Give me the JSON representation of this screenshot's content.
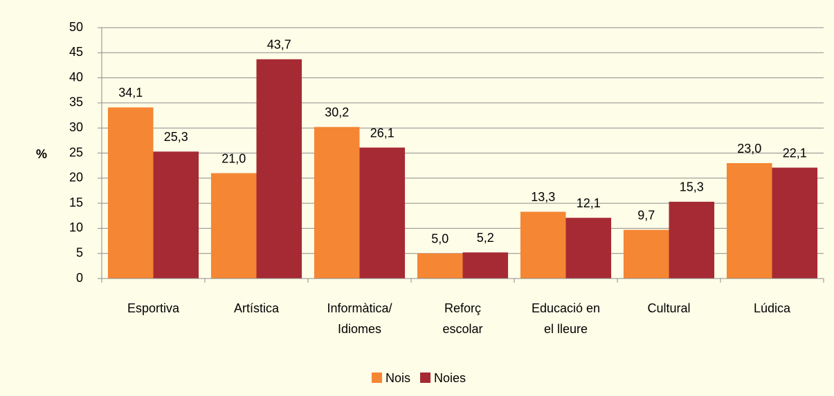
{
  "chart_data": {
    "type": "bar",
    "y_label": "%",
    "categories": [
      [
        "Esportiva"
      ],
      [
        "Artística"
      ],
      [
        "Informàtica/",
        "Idiomes"
      ],
      [
        "Reforç",
        "escolar"
      ],
      [
        "Educació en",
        "el lleure"
      ],
      [
        "Cultural"
      ],
      [
        "Lúdica"
      ]
    ],
    "series": [
      {
        "name": "Nois",
        "color": "#f58634",
        "values": [
          34.1,
          21.0,
          30.2,
          5.0,
          13.3,
          9.7,
          23.0
        ],
        "value_labels": [
          "34,1",
          "21,0",
          "30,2",
          "5,0",
          "13,3",
          "9,7",
          "23,0"
        ]
      },
      {
        "name": "Noies",
        "color": "#a62a34",
        "values": [
          25.3,
          43.7,
          26.1,
          5.2,
          12.1,
          15.3,
          22.1
        ],
        "value_labels": [
          "25,3",
          "43,7",
          "26,1",
          "5,2",
          "12,1",
          "15,3",
          "22,1"
        ]
      }
    ],
    "ylim": [
      0,
      50
    ],
    "yticks": [
      0,
      5,
      10,
      15,
      20,
      25,
      30,
      35,
      40,
      45,
      50
    ],
    "grid": true,
    "legend": "bottom"
  }
}
